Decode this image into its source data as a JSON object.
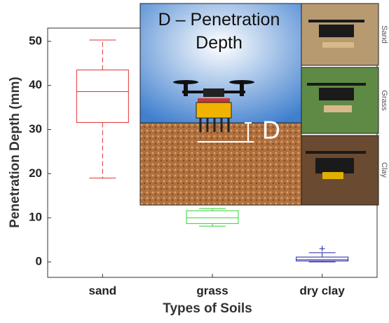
{
  "chart_data": {
    "type": "box",
    "x_label": "Types of Soils",
    "y_label": "Penetration Depth (mm)",
    "categories": [
      "sand",
      "grass",
      "dry clay"
    ],
    "boxes": [
      {
        "color": "#e03030",
        "whislo": 19,
        "q1": 31.6,
        "med": 38.6,
        "q3": 43.5,
        "whishi": 50.3,
        "fliers": []
      },
      {
        "color": "#30d030",
        "whislo": 8.1,
        "q1": 8.7,
        "med": 10,
        "q3": 11.6,
        "whishi": 12.1,
        "fliers": []
      },
      {
        "color": "#2020a0",
        "whislo": 0,
        "q1": 0.2,
        "med": 0.5,
        "q3": 1.1,
        "whishi": 2.1,
        "fliers": [
          3
        ]
      }
    ],
    "ylim": [
      -3.5,
      53
    ],
    "yticks": [
      0,
      10,
      20,
      30,
      40,
      50
    ],
    "inset": {
      "title": "D – Penetration Depth",
      "depth_label": "D",
      "photo_labels": [
        "Sand",
        "Grass",
        "Clay"
      ]
    }
  }
}
